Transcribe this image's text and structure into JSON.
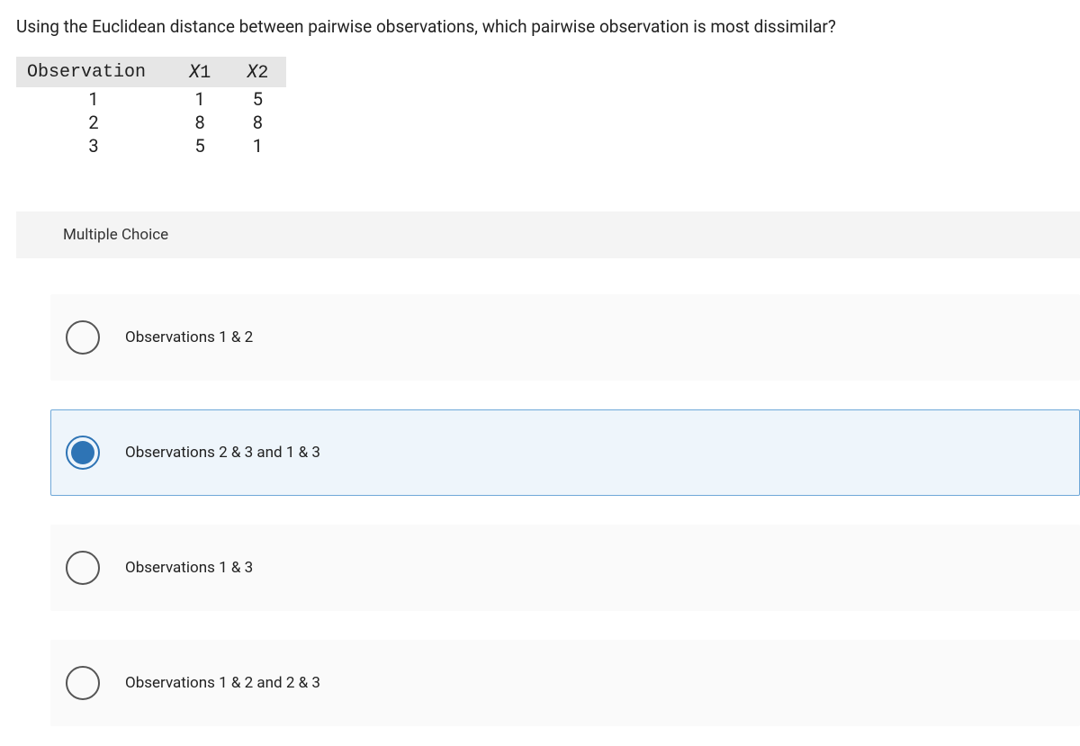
{
  "question": "Using the Euclidean distance between pairwise observations, which pairwise observation is most dissimilar?",
  "table": {
    "columns": [
      "Observation",
      "X1",
      "X2"
    ],
    "header_bg": "#e6e6e6",
    "header_font": "monospace",
    "rows": [
      [
        "1",
        "1",
        "5"
      ],
      [
        "2",
        "8",
        "8"
      ],
      [
        "3",
        "5",
        "1"
      ]
    ]
  },
  "section_label": "Multiple Choice",
  "options": [
    {
      "label": "Observations 1 & 2",
      "selected": false
    },
    {
      "label": "Observations 2 & 3 and 1 & 3",
      "selected": true
    },
    {
      "label": "Observations 1 & 3",
      "selected": false
    },
    {
      "label": "Observations 1 & 2 and 2 & 3",
      "selected": false
    }
  ],
  "colors": {
    "selected_bg": "#eef5fb",
    "selected_border": "#6fa8d8",
    "radio_fill": "#2e74b5",
    "option_bg": "#fafafa",
    "section_bg": "#f4f4f4"
  }
}
